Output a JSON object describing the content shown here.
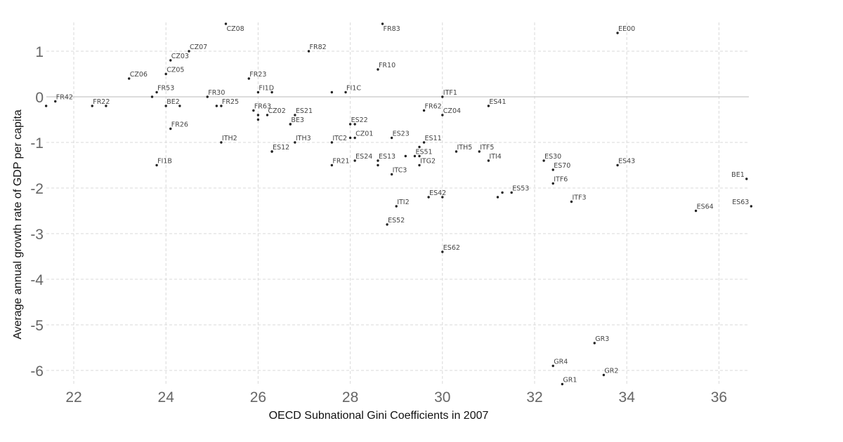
{
  "chart_data": {
    "type": "scatter",
    "title": "",
    "xlabel": "OECD Subnational Gini Coefficients in 2007",
    "ylabel": "Average annual growth rate of GDP per capita",
    "xlim": [
      21.4,
      36.7
    ],
    "ylim": [
      -6.35,
      1.6
    ],
    "xticks": [
      22,
      24,
      26,
      28,
      30,
      32,
      34,
      36
    ],
    "yticks": [
      1,
      0,
      -1,
      -2,
      -3,
      -4,
      -5,
      -6
    ],
    "grid": true,
    "zero_line": true,
    "points": [
      {
        "label": "CZ08",
        "x": 25.3,
        "y": 1.6
      },
      {
        "label": "FR83",
        "x": 28.7,
        "y": 1.6
      },
      {
        "label": "EE00",
        "x": 33.8,
        "y": 1.4
      },
      {
        "label": "CZ07",
        "x": 24.5,
        "y": 1.0
      },
      {
        "label": "FR82",
        "x": 27.1,
        "y": 1.0
      },
      {
        "label": "CZ03",
        "x": 24.1,
        "y": 0.8
      },
      {
        "label": "FR10",
        "x": 28.6,
        "y": 0.6
      },
      {
        "label": "CZ05",
        "x": 24.0,
        "y": 0.5
      },
      {
        "label": "CZ06",
        "x": 23.2,
        "y": 0.4
      },
      {
        "label": "FR23",
        "x": 25.8,
        "y": 0.4
      },
      {
        "label": "FR53",
        "x": 23.8,
        "y": 0.1
      },
      {
        "label": "FI1D",
        "x": 26.0,
        "y": 0.1
      },
      {
        "label": "",
        "x": 26.3,
        "y": 0.1
      },
      {
        "label": "",
        "x": 27.6,
        "y": 0.1
      },
      {
        "label": "FI1C",
        "x": 27.9,
        "y": 0.1
      },
      {
        "label": "",
        "x": 23.7,
        "y": 0.0
      },
      {
        "label": "FR30",
        "x": 24.9,
        "y": 0.0
      },
      {
        "label": "ITF1",
        "x": 30.0,
        "y": 0.0
      },
      {
        "label": "",
        "x": 21.4,
        "y": -0.2
      },
      {
        "label": "FR42",
        "x": 21.6,
        "y": -0.1
      },
      {
        "label": "FR22",
        "x": 22.4,
        "y": -0.2
      },
      {
        "label": "",
        "x": 22.7,
        "y": -0.2
      },
      {
        "label": "BE2",
        "x": 24.0,
        "y": -0.2
      },
      {
        "label": "",
        "x": 24.3,
        "y": -0.2
      },
      {
        "label": "",
        "x": 25.1,
        "y": -0.2
      },
      {
        "label": "FR25",
        "x": 25.2,
        "y": -0.2
      },
      {
        "label": "ES41",
        "x": 31.0,
        "y": -0.2
      },
      {
        "label": "FR63",
        "x": 25.9,
        "y": -0.3
      },
      {
        "label": "FR62",
        "x": 29.6,
        "y": -0.3
      },
      {
        "label": "",
        "x": 26.0,
        "y": -0.4
      },
      {
        "label": "CZ02",
        "x": 26.2,
        "y": -0.4
      },
      {
        "label": "ES21",
        "x": 26.8,
        "y": -0.4
      },
      {
        "label": "CZ04",
        "x": 30.0,
        "y": -0.4
      },
      {
        "label": "",
        "x": 26.0,
        "y": -0.5
      },
      {
        "label": "",
        "x": 26.7,
        "y": -0.6
      },
      {
        "label": "BE3",
        "x": 26.7,
        "y": -0.6
      },
      {
        "label": "ES22",
        "x": 28.0,
        "y": -0.6
      },
      {
        "label": "",
        "x": 28.1,
        "y": -0.6
      },
      {
        "label": "FR26",
        "x": 24.1,
        "y": -0.7
      },
      {
        "label": "",
        "x": 28.0,
        "y": -0.9
      },
      {
        "label": "CZ01",
        "x": 28.1,
        "y": -0.9
      },
      {
        "label": "ES23",
        "x": 28.9,
        "y": -0.9
      },
      {
        "label": "ITH2",
        "x": 25.2,
        "y": -1.0
      },
      {
        "label": "ITH3",
        "x": 26.8,
        "y": -1.0
      },
      {
        "label": "ITC2",
        "x": 27.6,
        "y": -1.0
      },
      {
        "label": "ES11",
        "x": 29.6,
        "y": -1.0
      },
      {
        "label": "",
        "x": 29.5,
        "y": -1.1
      },
      {
        "label": "ES12",
        "x": 26.3,
        "y": -1.2
      },
      {
        "label": "",
        "x": 26.3,
        "y": -1.2
      },
      {
        "label": "ITH5",
        "x": 30.3,
        "y": -1.2
      },
      {
        "label": "ITF5",
        "x": 30.8,
        "y": -1.2
      },
      {
        "label": "ES51",
        "x": 29.4,
        "y": -1.3
      },
      {
        "label": "",
        "x": 29.2,
        "y": -1.3
      },
      {
        "label": "",
        "x": 29.5,
        "y": -1.3
      },
      {
        "label": "ES24",
        "x": 28.1,
        "y": -1.4
      },
      {
        "label": "ES13",
        "x": 28.6,
        "y": -1.4
      },
      {
        "label": "ITI4",
        "x": 31.0,
        "y": -1.4
      },
      {
        "label": "ES30",
        "x": 32.2,
        "y": -1.4
      },
      {
        "label": "FI1B",
        "x": 23.8,
        "y": -1.5
      },
      {
        "label": "FR21",
        "x": 27.6,
        "y": -1.5
      },
      {
        "label": "",
        "x": 28.6,
        "y": -1.5
      },
      {
        "label": "ITG2",
        "x": 29.5,
        "y": -1.5
      },
      {
        "label": "ES43",
        "x": 33.8,
        "y": -1.5
      },
      {
        "label": "ES70",
        "x": 32.4,
        "y": -1.6
      },
      {
        "label": "ITC3",
        "x": 28.9,
        "y": -1.7
      },
      {
        "label": "BE1",
        "x": 36.6,
        "y": -1.8
      },
      {
        "label": "ITF6",
        "x": 32.4,
        "y": -1.9
      },
      {
        "label": "",
        "x": 31.3,
        "y": -2.1
      },
      {
        "label": "ES53",
        "x": 31.5,
        "y": -2.1
      },
      {
        "label": "ES42",
        "x": 29.7,
        "y": -2.2
      },
      {
        "label": "",
        "x": 30.0,
        "y": -2.2
      },
      {
        "label": "",
        "x": 31.2,
        "y": -2.2
      },
      {
        "label": "ITF3",
        "x": 32.8,
        "y": -2.3
      },
      {
        "label": "ITI2",
        "x": 29.0,
        "y": -2.4
      },
      {
        "label": "ES63",
        "x": 36.7,
        "y": -2.4
      },
      {
        "label": "ES64",
        "x": 35.5,
        "y": -2.5
      },
      {
        "label": "ES52",
        "x": 28.8,
        "y": -2.8
      },
      {
        "label": "ES62",
        "x": 30.0,
        "y": -3.4
      },
      {
        "label": "GR3",
        "x": 33.3,
        "y": -5.4
      },
      {
        "label": "GR4",
        "x": 32.4,
        "y": -5.9
      },
      {
        "label": "GR2",
        "x": 33.5,
        "y": -6.1
      },
      {
        "label": "GR1",
        "x": 32.6,
        "y": -6.3
      }
    ]
  }
}
